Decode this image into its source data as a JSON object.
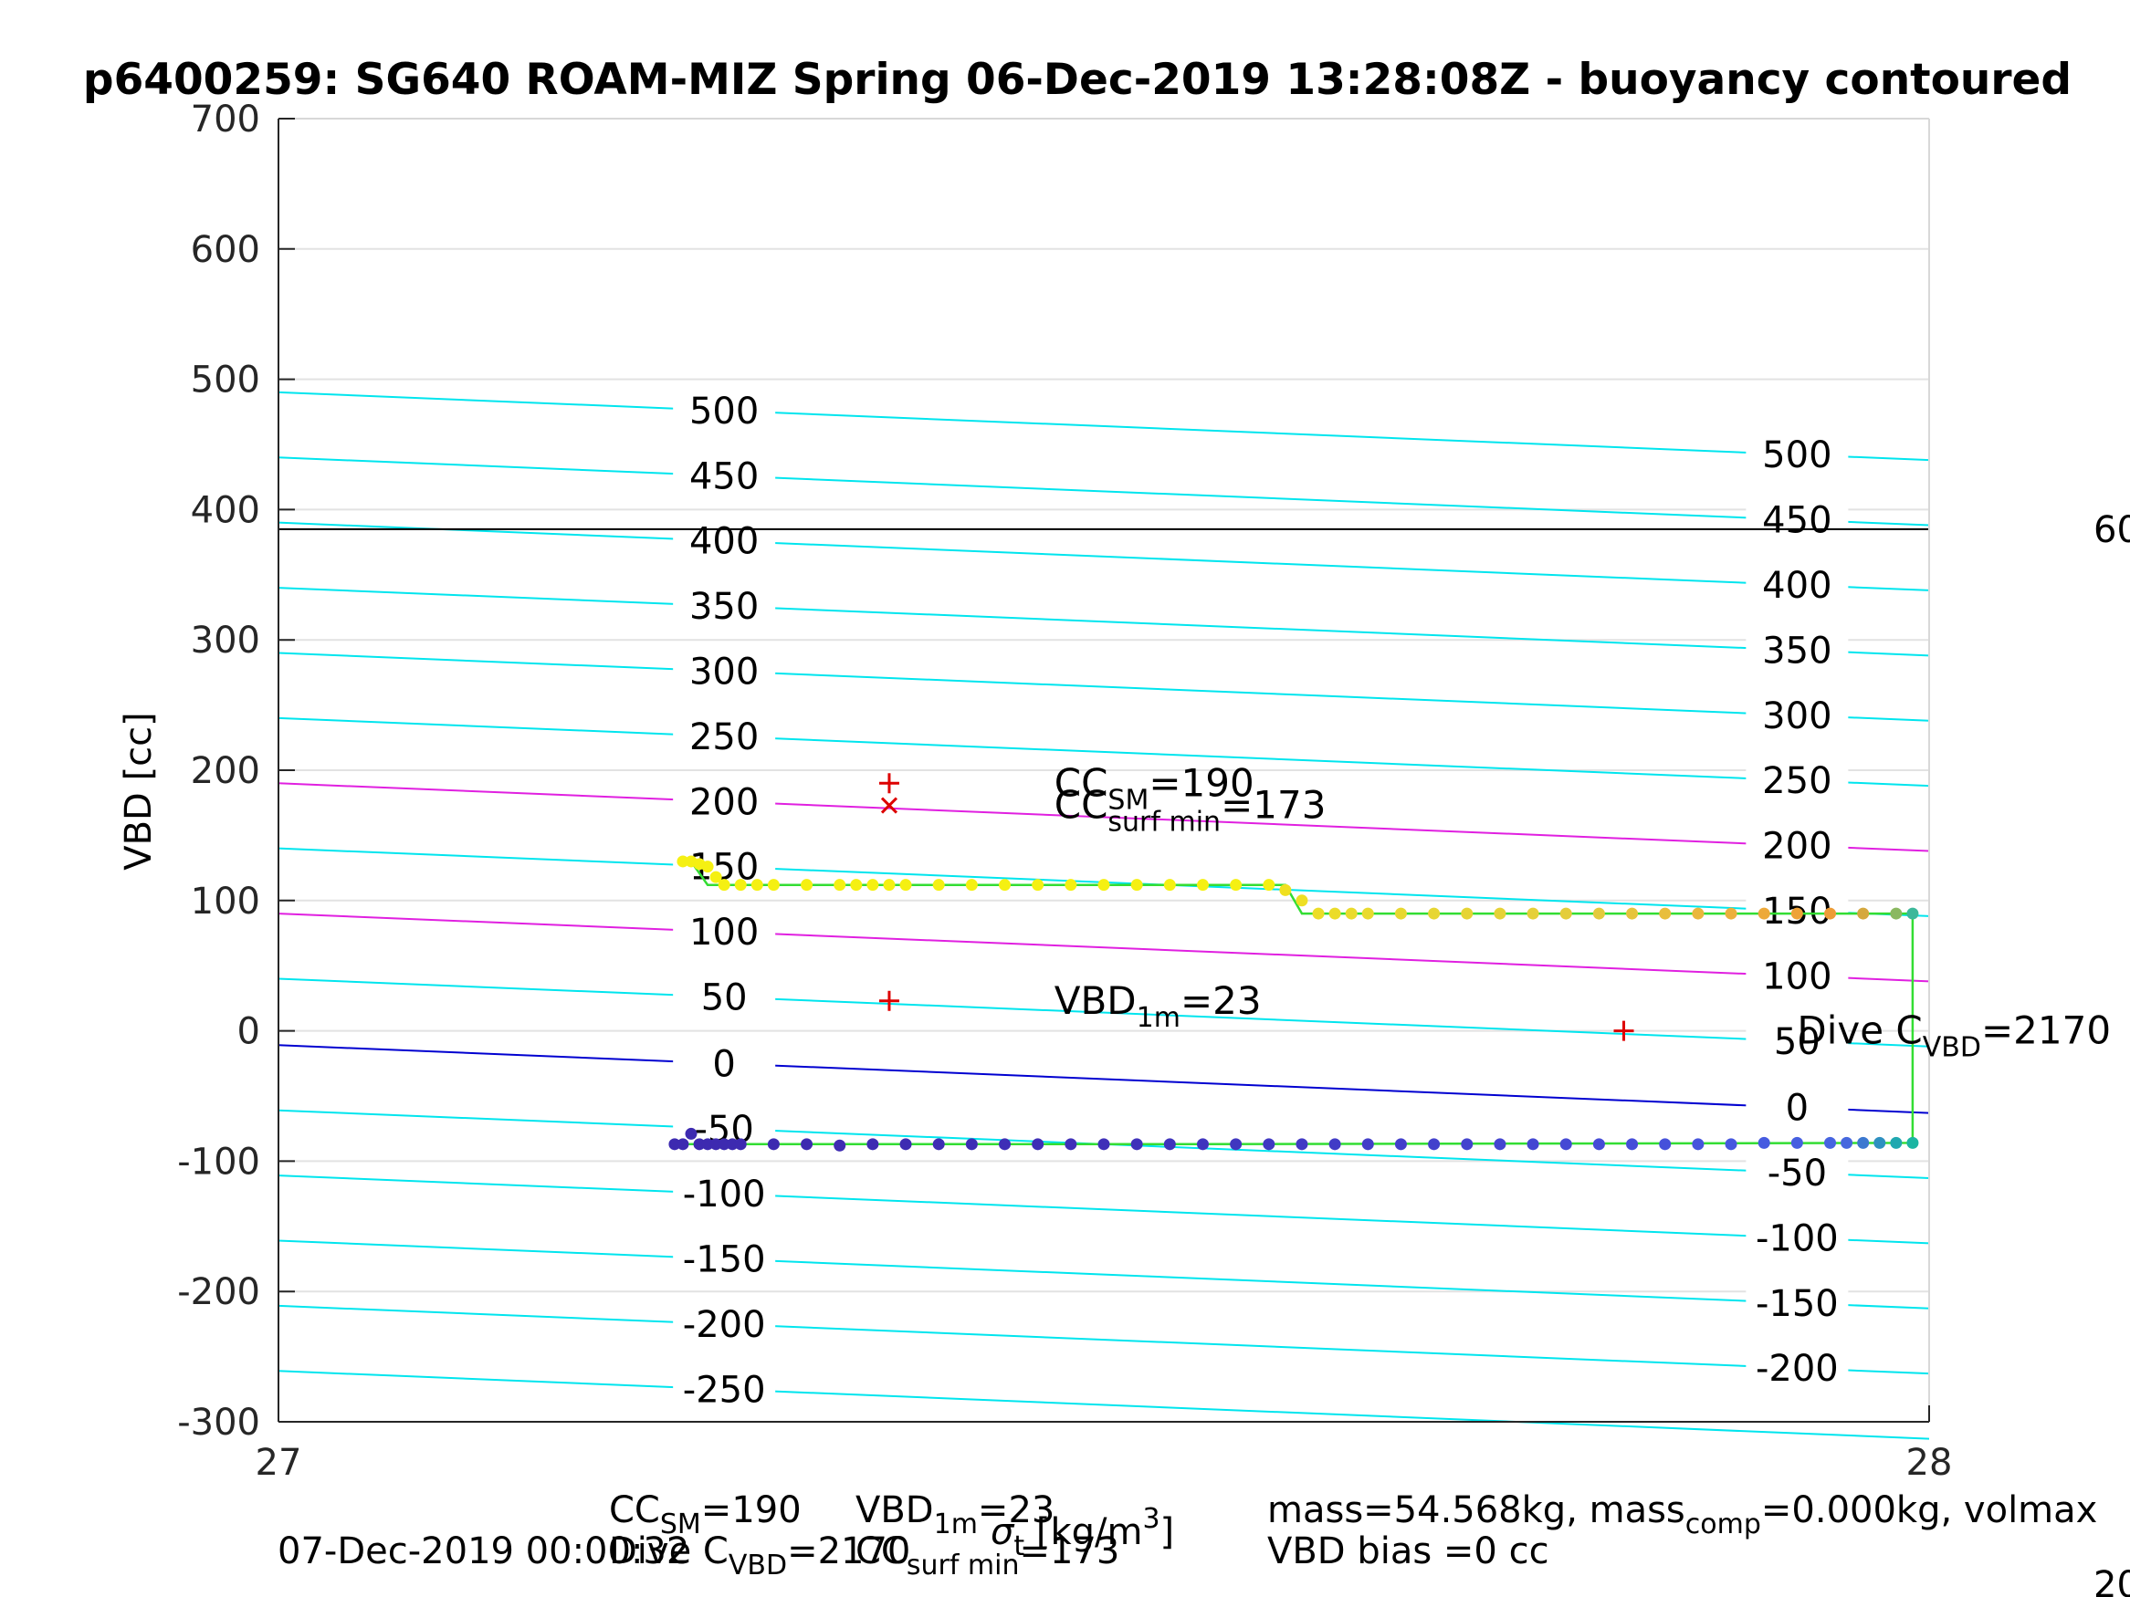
{
  "chart_data": {
    "type": "scatter",
    "title": "p6400259: SG640 ROAM-MIZ Spring 06-Dec-2019 13:28:08Z - buoyancy contoured",
    "ylabel": "VBD [cc]",
    "xlabel": "",
    "xlim": [
      27,
      28
    ],
    "ylim": [
      -300,
      700
    ],
    "x_ticks": [
      "27",
      "28"
    ],
    "y_ticks": [
      "-300",
      "-200",
      "-100",
      "0",
      "100",
      "200",
      "300",
      "400",
      "500",
      "600",
      "700"
    ],
    "grid": true,
    "contours": [
      {
        "label": "500",
        "left_label": "500",
        "right_label": "500",
        "y_left": 490,
        "y_right": 438,
        "color": "#00e5ee"
      },
      {
        "label": "450",
        "left_label": "450",
        "right_label": "450",
        "y_left": 440,
        "y_right": 388,
        "color": "#00e5ee"
      },
      {
        "label": "400",
        "left_label": "400",
        "right_label": "400",
        "y_left": 390,
        "y_right": 338,
        "color": "#00e5ee"
      },
      {
        "label": "350",
        "left_label": "350",
        "right_label": "350",
        "y_left": 340,
        "y_right": 288,
        "color": "#00e5ee"
      },
      {
        "label": "300",
        "left_label": "300",
        "right_label": "300",
        "y_left": 290,
        "y_right": 238,
        "color": "#00e5ee"
      },
      {
        "label": "250",
        "left_label": "250",
        "right_label": "250",
        "y_left": 240,
        "y_right": 188,
        "color": "#00e5ee"
      },
      {
        "label": "200",
        "left_label": "200",
        "right_label": "200",
        "y_left": 190,
        "y_right": 138,
        "color": "#e020e0"
      },
      {
        "label": "150",
        "left_label": "150",
        "right_label": "150",
        "y_left": 140,
        "y_right": 88,
        "color": "#00e5ee"
      },
      {
        "label": "100",
        "left_label": "100",
        "right_label": "100",
        "y_left": 90,
        "y_right": 38,
        "color": "#e020e0"
      },
      {
        "label": "50",
        "left_label": "50",
        "right_label": "50",
        "y_left": 40,
        "y_right": -12,
        "color": "#00e5ee"
      },
      {
        "label": "0",
        "left_label": "0",
        "right_label": "0",
        "y_left": -11,
        "y_right": -63,
        "color": "#0000d0"
      },
      {
        "label": "-50",
        "left_label": "-50",
        "right_label": "-50",
        "y_left": -61,
        "y_right": -113,
        "color": "#00e5ee"
      },
      {
        "label": "-100",
        "left_label": "-100",
        "right_label": "-100",
        "y_left": -111,
        "y_right": -163,
        "color": "#00e5ee"
      },
      {
        "label": "-150",
        "left_label": "-150",
        "right_label": "-150",
        "y_left": -161,
        "y_right": -213,
        "color": "#00e5ee"
      },
      {
        "label": "-200",
        "left_label": "-200",
        "right_label": "-200",
        "y_left": -211,
        "y_right": -263,
        "color": "#00e5ee"
      },
      {
        "label": "-250",
        "left_label": "-250",
        "right_label": "",
        "y_left": -261,
        "y_right": -313,
        "color": "#00e5ee"
      }
    ],
    "reference_line": {
      "y": 385,
      "color": "#000000",
      "right_label": "60"
    },
    "series": [
      {
        "color_scheme": "yellow-to-orange",
        "x": [
          27.245,
          27.25,
          27.255,
          27.26,
          27.265,
          27.27,
          27.28,
          27.29,
          27.3,
          27.32,
          27.34,
          27.35,
          27.36,
          27.37,
          27.38,
          27.4,
          27.42,
          27.44,
          27.46,
          27.48,
          27.5,
          27.52,
          27.54,
          27.56,
          27.58,
          27.6,
          27.61,
          27.62,
          27.63,
          27.64,
          27.65,
          27.66,
          27.68,
          27.7,
          27.72,
          27.74,
          27.76,
          27.78,
          27.8,
          27.82,
          27.84,
          27.86,
          27.88,
          27.9,
          27.92,
          27.94,
          27.96,
          27.98,
          27.99
        ],
        "y": [
          130,
          130,
          128,
          126,
          118,
          112,
          112,
          112,
          112,
          112,
          112,
          112,
          112,
          112,
          112,
          112,
          112,
          112,
          112,
          112,
          112,
          112,
          112,
          112,
          112,
          112,
          108,
          100,
          90,
          90,
          90,
          90,
          90,
          90,
          90,
          90,
          90,
          90,
          90,
          90,
          90,
          90,
          90,
          90,
          90,
          90,
          90,
          90,
          90
        ],
        "colors": [
          "#f5f012",
          "#f5f012",
          "#f5f012",
          "#f5f012",
          "#f5f012",
          "#f5f012",
          "#f5f012",
          "#f5f012",
          "#f5f012",
          "#f5f012",
          "#f5f012",
          "#f5f012",
          "#f5f012",
          "#f5f012",
          "#f5f012",
          "#f5f012",
          "#f5f012",
          "#f5f012",
          "#f5f012",
          "#f5f012",
          "#f5f012",
          "#f5f012",
          "#f5f012",
          "#f5f012",
          "#f5f012",
          "#f5f012",
          "#f0e020",
          "#eedf24",
          "#ecdd28",
          "#ebdc2a",
          "#eadb2c",
          "#e9da2e",
          "#e8d830",
          "#e7d632",
          "#e6d434",
          "#e6d236",
          "#e5d038",
          "#e4cd3a",
          "#e4ca3c",
          "#e6c43c",
          "#e8be3c",
          "#eab73c",
          "#ecb03c",
          "#eda93a",
          "#eea238",
          "#ee9c36",
          "#d5a83e",
          "#8ab860",
          "#3cb89a"
        ]
      },
      {
        "color_scheme": "indigo-to-teal",
        "x": [
          27.24,
          27.245,
          27.25,
          27.255,
          27.26,
          27.265,
          27.27,
          27.275,
          27.28,
          27.3,
          27.32,
          27.34,
          27.36,
          27.38,
          27.4,
          27.42,
          27.44,
          27.46,
          27.48,
          27.5,
          27.52,
          27.54,
          27.56,
          27.58,
          27.6,
          27.62,
          27.64,
          27.66,
          27.68,
          27.7,
          27.72,
          27.74,
          27.76,
          27.78,
          27.8,
          27.82,
          27.84,
          27.86,
          27.88,
          27.9,
          27.92,
          27.94,
          27.95,
          27.96,
          27.97,
          27.98,
          27.99
        ],
        "y": [
          -87,
          -87,
          -79,
          -87,
          -87,
          -87,
          -87,
          -87,
          -87,
          -87,
          -87,
          -88,
          -87,
          -87,
          -87,
          -87,
          -87,
          -87,
          -87,
          -87,
          -87,
          -87,
          -87,
          -87,
          -87,
          -87,
          -87,
          -87,
          -87,
          -87,
          -87,
          -87,
          -87,
          -87,
          -87,
          -87,
          -87,
          -87,
          -87,
          -86,
          -86,
          -86,
          -86,
          -86,
          -86,
          -86,
          -86
        ],
        "colors": [
          "#3d2ab0",
          "#3d2ab0",
          "#3d2ab0",
          "#3d2ab0",
          "#3d2ab0",
          "#3d2ab0",
          "#3d2ab0",
          "#3d2ab0",
          "#3d2ab0",
          "#3d2ab0",
          "#3d2ab0",
          "#3e2cb2",
          "#3e2cb2",
          "#3e2cb2",
          "#3e2db4",
          "#3e2db4",
          "#3e2eb6",
          "#3e2eb6",
          "#3f30b8",
          "#3f30b8",
          "#3f31ba",
          "#3f33bc",
          "#3f34be",
          "#4036c0",
          "#4038c2",
          "#4139c4",
          "#413bc6",
          "#423dc8",
          "#423fca",
          "#4341cc",
          "#4343ce",
          "#4445d0",
          "#4447d2",
          "#4549d4",
          "#454bd6",
          "#464ed8",
          "#4651da",
          "#4654dc",
          "#4657de",
          "#465be0",
          "#465fe0",
          "#4664e0",
          "#4668de",
          "#3c78d0",
          "#2e90c0",
          "#20a8b0",
          "#1bb5a2"
        ]
      }
    ],
    "trajectory_line": {
      "color": "#33dd33",
      "points_x": [
        27.24,
        27.55,
        27.99,
        27.99,
        27.62,
        27.61,
        27.26,
        27.25
      ],
      "points_y": [
        -87,
        -87,
        -86,
        90,
        90,
        112,
        112,
        130
      ]
    },
    "markers": [
      {
        "symbol": "+",
        "x": 27.37,
        "y": 190,
        "color": "#dd0000"
      },
      {
        "symbol": "x",
        "x": 27.37,
        "y": 173,
        "color": "#dd0000"
      },
      {
        "symbol": "+",
        "x": 27.37,
        "y": 23,
        "color": "#dd0000"
      },
      {
        "symbol": "+",
        "x": 27.815,
        "y": 0,
        "color": "#dd0000"
      }
    ],
    "annotations": [
      {
        "main": "CC",
        "sub": "SM",
        "rest": "=190",
        "x": 27.47,
        "y": 190
      },
      {
        "main": "CC",
        "sub": "surf min",
        "rest": "=173",
        "x": 27.47,
        "y": 173
      },
      {
        "main": "VBD",
        "sub": "1m",
        "rest": "=23",
        "x": 27.47,
        "y": 23
      },
      {
        "main": "Dive C",
        "sub": "VBD",
        "rest": "=2170",
        "x": 27.92,
        "y": 0
      }
    ]
  },
  "footer": {
    "date": "07-Dec-2019 00:00:32",
    "line1_cc_main": "CC",
    "line1_cc_sub": "SM",
    "line1_cc_rest": "=190",
    "line1_vbd_main": "VBD",
    "line1_vbd_sub": "1m",
    "line1_vbd_rest": "=23",
    "xunit_sigma": "σ",
    "xunit_sub": "t",
    "xunit_rest": " [kg/m",
    "xunit_sup": "3",
    "xunit_close": "]",
    "line2_dive_main": "Dive C",
    "line2_dive_sub": "VBD",
    "line2_dive_rest": "=2170",
    "line2_cc_main": "CC",
    "line2_cc_sub": "surf min",
    "line2_cc_rest": "=173",
    "mass_text": "mass=54.568kg, mass",
    "mass_sub": "comp",
    "mass_rest": "=0.000kg, volmax",
    "bias_text": "VBD bias =0 cc",
    "corner_fragment": "20"
  }
}
